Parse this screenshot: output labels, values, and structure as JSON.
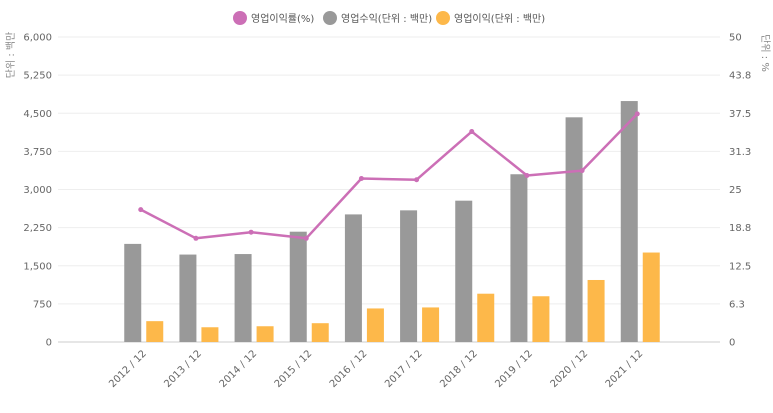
{
  "chart_data": {
    "type": "bar",
    "categories": [
      "2012 / 12",
      "2013 / 12",
      "2014 / 12",
      "2015 / 12",
      "2016 / 12",
      "2017 / 12",
      "2018 / 12",
      "2019 / 12",
      "2020 / 12",
      "2021 / 12"
    ],
    "series": [
      {
        "name": "영업이익률(%)",
        "kind": "line",
        "axis": "right",
        "color": "#cc6fb6",
        "values": [
          21.7,
          17.0,
          18.0,
          17.0,
          26.8,
          26.6,
          34.5,
          27.3,
          28.1,
          37.4
        ]
      },
      {
        "name": "영업수익(단위 : 백만)",
        "kind": "bar",
        "axis": "left",
        "color": "#999999",
        "values": [
          1930,
          1720,
          1730,
          2170,
          2510,
          2590,
          2780,
          3300,
          4420,
          4740
        ]
      },
      {
        "name": "영업이익(단위 : 백만)",
        "kind": "bar",
        "axis": "left",
        "color": "#fdb84a",
        "values": [
          410,
          290,
          310,
          370,
          660,
          680,
          950,
          900,
          1220,
          1760
        ]
      }
    ],
    "left_axis": {
      "label": "단위 : 백만",
      "ylim": [
        0,
        6000
      ],
      "ticks": [
        "0",
        "750",
        "1,500",
        "2,250",
        "3,000",
        "3,750",
        "4,500",
        "5,250",
        "6,000"
      ]
    },
    "right_axis": {
      "label": "단위 : %",
      "ylim": [
        0,
        50
      ],
      "ticks": [
        "0",
        "6.3",
        "12.5",
        "18.8",
        "25",
        "31.3",
        "37.5",
        "43.8",
        "50"
      ]
    },
    "grid": true,
    "legend_position": "top-center"
  }
}
